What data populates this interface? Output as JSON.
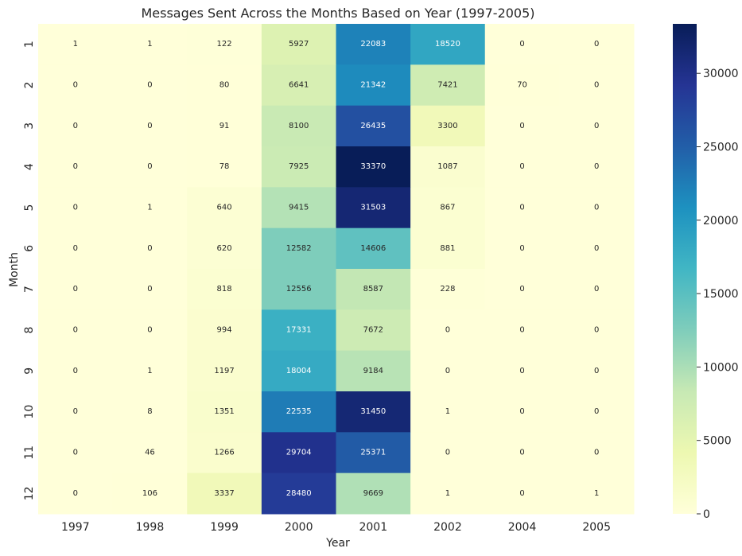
{
  "chart_data": {
    "type": "heatmap",
    "title": "Messages Sent Across the Months Based on Year (1997-2005)",
    "xlabel": "Year",
    "ylabel": "Month",
    "x_categories": [
      "1997",
      "1998",
      "1999",
      "2000",
      "2001",
      "2002",
      "2004",
      "2005"
    ],
    "y_categories": [
      "1",
      "2",
      "3",
      "4",
      "5",
      "6",
      "7",
      "8",
      "9",
      "10",
      "11",
      "12"
    ],
    "values": [
      [
        1,
        1,
        122,
        5927,
        22083,
        18520,
        0,
        0
      ],
      [
        0,
        0,
        80,
        6641,
        21342,
        7421,
        70,
        0
      ],
      [
        0,
        0,
        91,
        8100,
        26435,
        3300,
        0,
        0
      ],
      [
        0,
        0,
        78,
        7925,
        33370,
        1087,
        0,
        0
      ],
      [
        0,
        1,
        640,
        9415,
        31503,
        867,
        0,
        0
      ],
      [
        0,
        0,
        620,
        12582,
        14606,
        881,
        0,
        0
      ],
      [
        0,
        0,
        818,
        12556,
        8587,
        228,
        0,
        0
      ],
      [
        0,
        0,
        994,
        17331,
        7672,
        0,
        0,
        0
      ],
      [
        0,
        1,
        1197,
        18004,
        9184,
        0,
        0,
        0
      ],
      [
        0,
        8,
        1351,
        22535,
        31450,
        1,
        0,
        0
      ],
      [
        0,
        46,
        1266,
        29704,
        25371,
        0,
        0,
        0
      ],
      [
        0,
        106,
        3337,
        28480,
        9669,
        1,
        0,
        1
      ]
    ],
    "colormap": "YlGnBu",
    "vmin": 0,
    "vmax": 33370,
    "colorbar_ticks": [
      0,
      5000,
      10000,
      15000,
      20000,
      25000,
      30000
    ],
    "colorbar_tick_labels": [
      "0",
      "5000",
      "10000",
      "15000",
      "20000",
      "25000",
      "30000"
    ],
    "colormap_stops": [
      "#ffffd9",
      "#edf8b1",
      "#c7e9b4",
      "#7fcdbb",
      "#41b6c4",
      "#1d91c0",
      "#225ea8",
      "#253494",
      "#081d58"
    ]
  }
}
